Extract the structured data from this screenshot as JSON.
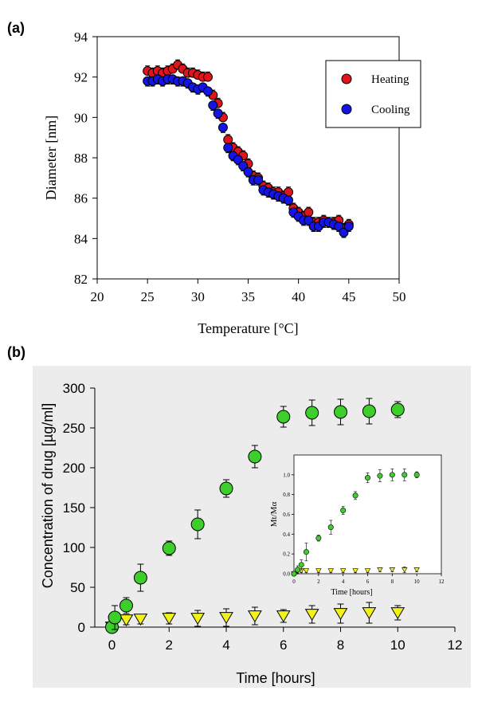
{
  "panel_a_label": "(a)",
  "panel_b_label": "(b)",
  "chart_data": [
    {
      "type": "scatter",
      "xlabel": "Temperature [°C]",
      "ylabel": "Diameter [nm]",
      "xlim": [
        20,
        50
      ],
      "ylim": [
        82,
        94
      ],
      "xticks": [
        "20",
        "25",
        "30",
        "35",
        "40",
        "45",
        "50"
      ],
      "yticks": [
        "82",
        "84",
        "86",
        "88",
        "90",
        "92",
        "94"
      ],
      "grid": false,
      "legend": "top-right",
      "series": [
        {
          "name": "Heating",
          "color": "#e0141b",
          "x": [
            25,
            25.5,
            26,
            26.5,
            27,
            27.5,
            28,
            28.5,
            29,
            29.5,
            30,
            30.5,
            31,
            31.5,
            32,
            32.5,
            33,
            33.5,
            34,
            34.5,
            35,
            35.5,
            36,
            36.5,
            37,
            37.5,
            38,
            38.5,
            39,
            39.5,
            40,
            40.5,
            41,
            41.5,
            42,
            42.5,
            43,
            43.5,
            44,
            44.5,
            45
          ],
          "y": [
            92.3,
            92.2,
            92.3,
            92.2,
            92.3,
            92.4,
            92.6,
            92.4,
            92.2,
            92.2,
            92.1,
            92.0,
            92.0,
            91.1,
            90.7,
            90.0,
            88.9,
            88.5,
            88.3,
            88.1,
            87.7,
            87.1,
            87.0,
            86.6,
            86.5,
            86.3,
            86.3,
            86.1,
            86.3,
            85.5,
            85.3,
            85.1,
            85.3,
            84.8,
            84.8,
            84.9,
            84.8,
            84.8,
            84.9,
            84.5,
            84.7
          ],
          "yerr": 0.25
        },
        {
          "name": "Cooling",
          "color": "#1414e6",
          "x": [
            25,
            25.5,
            26,
            26.5,
            27,
            27.5,
            28,
            28.5,
            29,
            29.5,
            30,
            30.5,
            31,
            31.5,
            32,
            32.5,
            33,
            33.5,
            34,
            34.5,
            35,
            35.5,
            36,
            36.5,
            37,
            37.5,
            38,
            38.5,
            39,
            39.5,
            40,
            40.5,
            41,
            41.5,
            42,
            42.5,
            43,
            43.5,
            44,
            44.5,
            45
          ],
          "y": [
            91.8,
            91.8,
            91.9,
            91.8,
            91.9,
            91.9,
            91.8,
            91.8,
            91.7,
            91.5,
            91.4,
            91.5,
            91.3,
            90.6,
            90.2,
            89.5,
            88.5,
            88.1,
            87.9,
            87.6,
            87.3,
            86.9,
            86.9,
            86.4,
            86.3,
            86.2,
            86.1,
            86.0,
            85.9,
            85.3,
            85.1,
            84.9,
            84.9,
            84.6,
            84.6,
            84.8,
            84.8,
            84.7,
            84.6,
            84.3,
            84.6
          ],
          "yerr": 0.25
        }
      ]
    },
    {
      "type": "scatter",
      "xlabel": "Time [hours]",
      "ylabel": "Concentration of drug [µg/ml]",
      "xlim": [
        -0.6,
        12
      ],
      "ylim": [
        0,
        300
      ],
      "xticks": [
        "0",
        "2",
        "4",
        "6",
        "8",
        "10",
        "12"
      ],
      "yticks": [
        "0",
        "50",
        "100",
        "150",
        "200",
        "250",
        "300"
      ],
      "grid": false,
      "series": [
        {
          "color": "#3ccf2c",
          "marker": "circle",
          "x": [
            0,
            0.1,
            0.5,
            1,
            2,
            3,
            4,
            5,
            6,
            7,
            8,
            9,
            10
          ],
          "y": [
            0,
            12,
            27,
            62,
            99,
            129,
            174,
            214,
            264,
            269,
            270,
            271,
            273
          ],
          "yerr": [
            0,
            15,
            10,
            17,
            9,
            18,
            11,
            14,
            13,
            16,
            16,
            16,
            10
          ]
        },
        {
          "color": "#f2f21a",
          "marker": "triangle-down",
          "x": [
            0,
            0.1,
            0.5,
            1,
            2,
            3,
            4,
            5,
            6,
            7,
            8,
            9,
            10
          ],
          "y": [
            0,
            7,
            9,
            10,
            11,
            11,
            12,
            14,
            14,
            16,
            17,
            18,
            18
          ],
          "yerr": [
            0,
            4,
            6,
            6,
            7,
            10,
            11,
            11,
            8,
            11,
            12,
            13,
            9
          ]
        }
      ],
      "inset": {
        "type": "scatter",
        "xlabel": "Time [hours]",
        "ylabel": "Mt/Mα",
        "xlim": [
          0,
          12
        ],
        "ylim": [
          0,
          1.2
        ],
        "xticks": [
          "0",
          "2",
          "4",
          "6",
          "8",
          "10",
          "12"
        ],
        "yticks": [
          "0.0",
          "0.2",
          "0.4",
          "0.6",
          "0.8",
          "1.0"
        ],
        "series": [
          {
            "color": "#3ccf2c",
            "marker": "circle",
            "x": [
              0,
              0.3,
              0.6,
              1,
              2,
              3,
              4,
              5,
              6,
              7,
              8,
              9,
              10
            ],
            "y": [
              0,
              0.04,
              0.09,
              0.22,
              0.36,
              0.47,
              0.64,
              0.79,
              0.97,
              0.99,
              1.0,
              1.0,
              1.0
            ],
            "yerr": [
              0,
              0.04,
              0.05,
              0.09,
              0.03,
              0.07,
              0.04,
              0.04,
              0.05,
              0.06,
              0.06,
              0.06,
              0.03
            ]
          },
          {
            "color": "#f2f21a",
            "marker": "triangle-down",
            "x": [
              0,
              0.3,
              0.6,
              1,
              2,
              3,
              4,
              5,
              6,
              7,
              8,
              9,
              10
            ],
            "y": [
              0,
              0.02,
              0.03,
              0.03,
              0.03,
              0.03,
              0.03,
              0.03,
              0.03,
              0.04,
              0.04,
              0.04,
              0.04
            ],
            "yerr": [
              0,
              0.02,
              0.02,
              0.02,
              0.02,
              0.02,
              0.02,
              0.02,
              0.02,
              0.02,
              0.02,
              0.03,
              0.02
            ]
          }
        ]
      }
    }
  ]
}
